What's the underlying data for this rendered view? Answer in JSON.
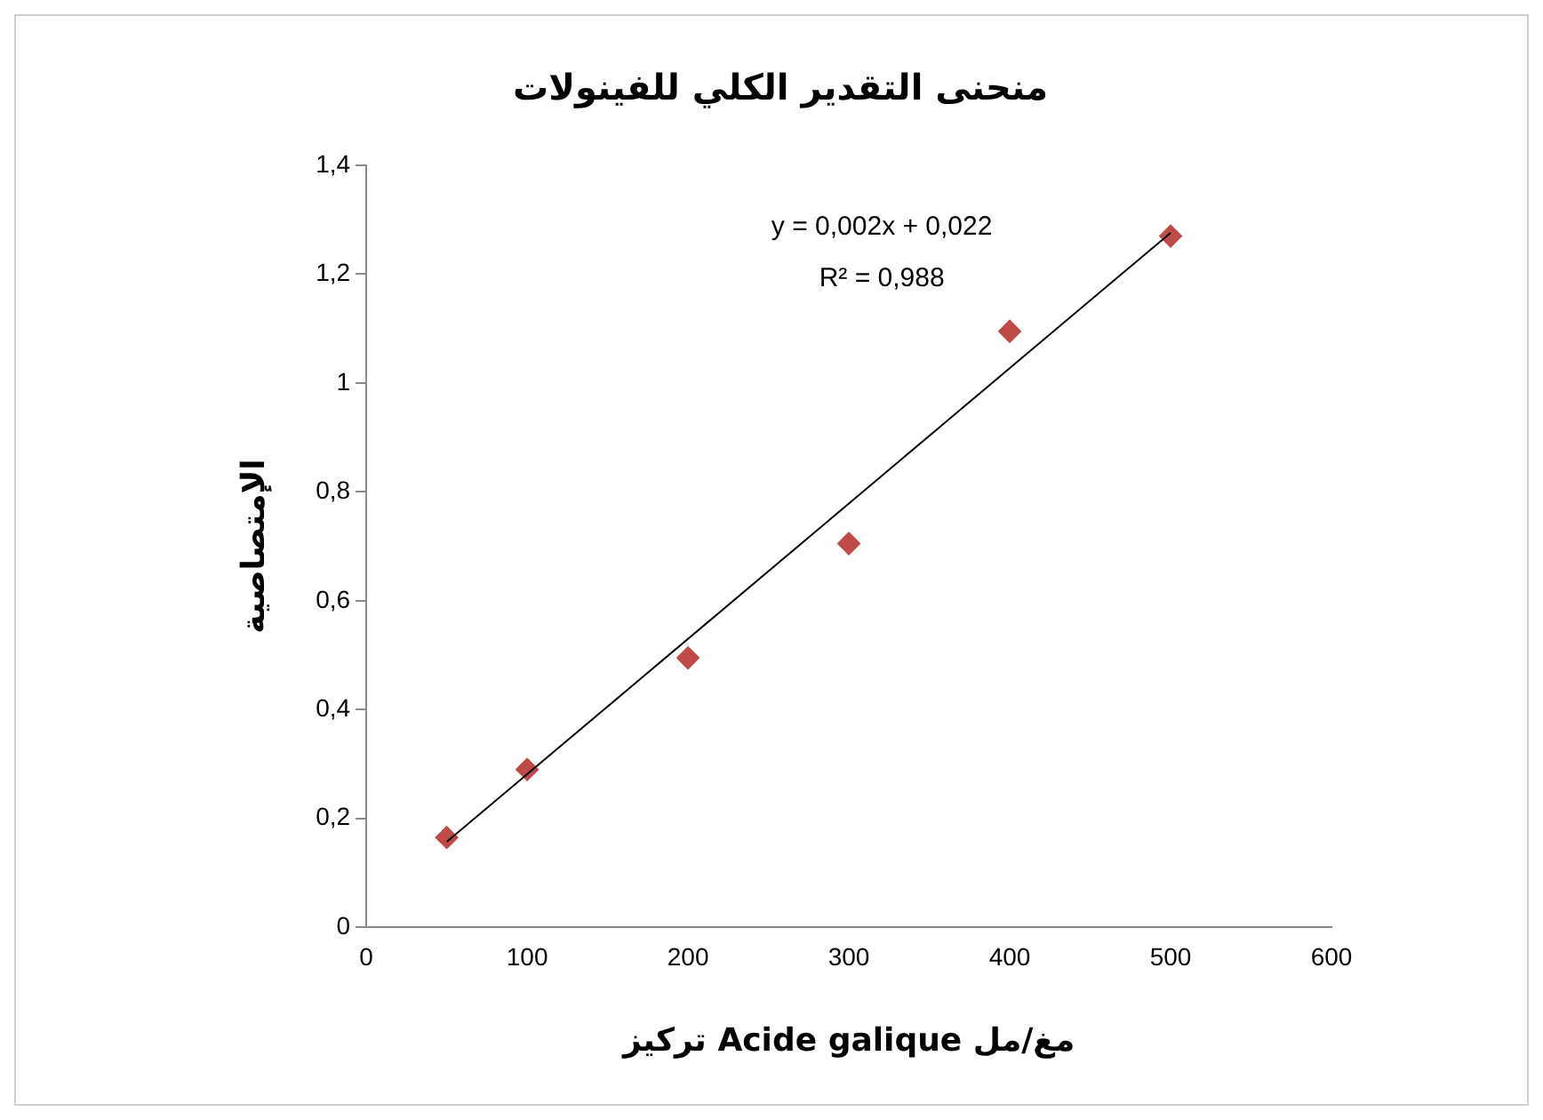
{
  "chart_data": {
    "type": "scatter",
    "title": "منحنى التقدير الكلي للفينولات",
    "xlabel": "تركيز Acide galique مغ/مل",
    "ylabel": "الإمتصاصية",
    "series": [
      {
        "type": "scatter",
        "color": "#be4b48",
        "marker": "diamond",
        "x": [
          50,
          100,
          200,
          300,
          400,
          500
        ],
        "values": [
          0.165,
          0.29,
          0.495,
          0.705,
          1.095,
          1.27
        ]
      },
      {
        "type": "line",
        "color": "#000000",
        "marker": "none",
        "x": [
          50,
          500
        ],
        "values": [
          0.157,
          1.276
        ]
      }
    ],
    "xlim": [
      0,
      600
    ],
    "xticks": [
      0,
      100,
      200,
      300,
      400,
      500,
      600
    ],
    "ylim": [
      0,
      1.4
    ],
    "yticks": [
      0,
      {
        "value": 0.2,
        "label": "0,2"
      },
      {
        "value": 0.4,
        "label": "0,4"
      },
      {
        "value": 0.6,
        "label": "0,6"
      },
      {
        "value": 0.8,
        "label": "0,8"
      },
      1,
      {
        "value": 1.2,
        "label": "1,2"
      },
      {
        "value": 1.4,
        "label": "1,4"
      }
    ],
    "annotations": [
      "y = 0,002x + 0,022",
      "R² = 0,988"
    ],
    "grid": false,
    "legend": false
  }
}
